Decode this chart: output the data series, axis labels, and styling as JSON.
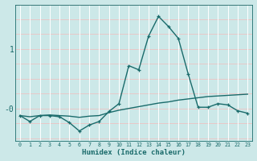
{
  "xlabel": "Humidex (Indice chaleur)",
  "background_color": "#cce8e8",
  "line_color": "#1a6b6b",
  "grid_color_h": "#e8c8c8",
  "grid_color_v": "#ffffff",
  "x_ticks": [
    0,
    1,
    2,
    3,
    4,
    5,
    6,
    7,
    8,
    9,
    10,
    11,
    12,
    13,
    14,
    15,
    16,
    17,
    18,
    19,
    20,
    21,
    22,
    23
  ],
  "xlim": [
    -0.5,
    23.5
  ],
  "ylim": [
    -0.55,
    1.75
  ],
  "yticks": [
    0.0,
    1.0
  ],
  "ytick_labels": [
    "-0",
    "1"
  ],
  "series1_x": [
    0,
    1,
    2,
    3,
    4,
    5,
    6,
    7,
    8,
    9,
    10,
    11,
    12,
    13,
    14,
    15,
    16,
    17,
    18,
    19,
    20,
    21,
    22,
    23
  ],
  "series1_y": [
    -0.12,
    -0.22,
    -0.12,
    -0.12,
    -0.14,
    -0.24,
    -0.38,
    -0.28,
    -0.22,
    -0.05,
    0.08,
    0.72,
    0.65,
    1.22,
    1.55,
    1.38,
    1.18,
    0.58,
    0.02,
    0.02,
    0.08,
    0.06,
    -0.04,
    -0.08
  ],
  "series2_x": [
    0,
    1,
    2,
    3,
    4,
    5,
    6,
    7,
    8,
    9,
    10,
    11,
    12,
    13,
    14,
    15,
    16,
    17,
    18,
    19,
    20,
    21,
    22,
    23
  ],
  "series2_y": [
    -0.12,
    -0.14,
    -0.12,
    -0.11,
    -0.12,
    -0.13,
    -0.15,
    -0.13,
    -0.12,
    -0.07,
    -0.03,
    0.0,
    0.03,
    0.06,
    0.09,
    0.11,
    0.14,
    0.16,
    0.18,
    0.2,
    0.21,
    0.22,
    0.23,
    0.24
  ]
}
